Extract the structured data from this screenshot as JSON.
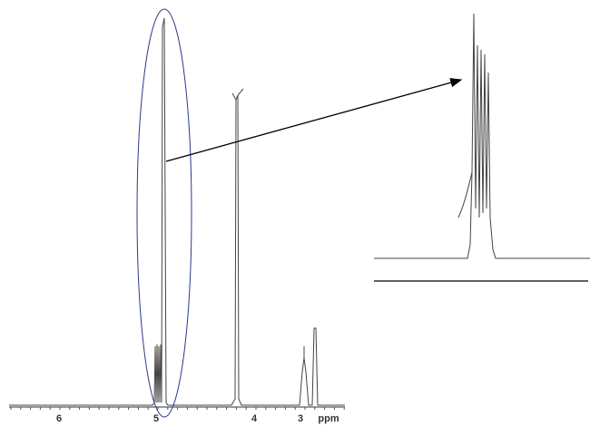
{
  "axis": {
    "tick_labels": [
      "6",
      "5",
      "4",
      "3"
    ],
    "unit": "ppm"
  }
}
